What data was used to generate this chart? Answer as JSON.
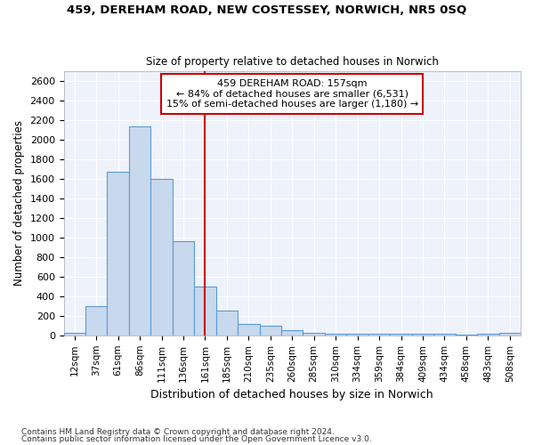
{
  "title": "459, DEREHAM ROAD, NEW COSTESSEY, NORWICH, NR5 0SQ",
  "subtitle": "Size of property relative to detached houses in Norwich",
  "xlabel": "Distribution of detached houses by size in Norwich",
  "ylabel": "Number of detached properties",
  "bar_color": "#c8d8ed",
  "bar_edge_color": "#5b9bd5",
  "background_color": "#eef2fb",
  "grid_color": "#ffffff",
  "vline_color": "#cc0000",
  "vline_index": 6,
  "annotation_text": "459 DEREHAM ROAD: 157sqm\n← 84% of detached houses are smaller (6,531)\n15% of semi-detached houses are larger (1,180) →",
  "annotation_box_color": "#ffffff",
  "annotation_box_edge": "#cc0000",
  "categories": [
    "12sqm",
    "37sqm",
    "61sqm",
    "86sqm",
    "111sqm",
    "136sqm",
    "161sqm",
    "185sqm",
    "210sqm",
    "235sqm",
    "260sqm",
    "285sqm",
    "310sqm",
    "334sqm",
    "359sqm",
    "384sqm",
    "409sqm",
    "434sqm",
    "458sqm",
    "483sqm",
    "508sqm"
  ],
  "values": [
    25,
    300,
    1670,
    2140,
    1600,
    960,
    500,
    250,
    120,
    100,
    50,
    30,
    20,
    20,
    20,
    15,
    15,
    15,
    10,
    15,
    25
  ],
  "ylim": [
    0,
    2700
  ],
  "yticks": [
    0,
    200,
    400,
    600,
    800,
    1000,
    1200,
    1400,
    1600,
    1800,
    2000,
    2200,
    2400,
    2600
  ],
  "footnote1": "Contains HM Land Registry data © Crown copyright and database right 2024.",
  "footnote2": "Contains public sector information licensed under the Open Government Licence v3.0."
}
